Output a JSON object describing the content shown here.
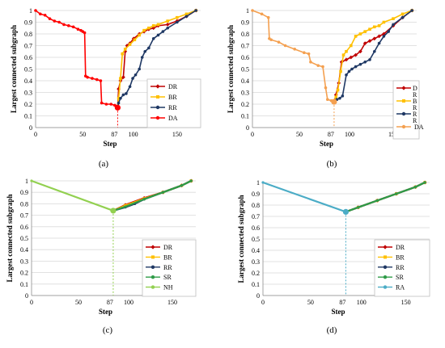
{
  "chart_data": [
    {
      "panel": "(a)",
      "type": "line",
      "xlabel": "Step",
      "ylabel": "Largest connected subgraph",
      "xlim": [
        0,
        175
      ],
      "ylim": [
        0,
        1
      ],
      "xticks": [
        0,
        50,
        87,
        100,
        150
      ],
      "yticks": [
        0,
        0.1,
        0.2,
        0.3,
        0.4,
        0.5,
        0.6,
        0.7,
        0.8,
        0.9,
        1
      ],
      "marker_step": 87,
      "legend_position": "right",
      "series": [
        {
          "name": "DR",
          "color": "#c00000",
          "marker": "diamond",
          "x": [
            87,
            88,
            90,
            93,
            95,
            97,
            100,
            104,
            110,
            115,
            120,
            125,
            130,
            140,
            150,
            160,
            170
          ],
          "y": [
            0.17,
            0.33,
            0.4,
            0.43,
            0.65,
            0.7,
            0.72,
            0.76,
            0.8,
            0.82,
            0.84,
            0.85,
            0.87,
            0.88,
            0.91,
            0.95,
            1.0
          ]
        },
        {
          "name": "BR",
          "color": "#ffc000",
          "marker": "square",
          "x": [
            87,
            88,
            90,
            92,
            95,
            100,
            105,
            110,
            115,
            120,
            125,
            130,
            140,
            150,
            160,
            170
          ],
          "y": [
            0.18,
            0.25,
            0.42,
            0.63,
            0.67,
            0.71,
            0.75,
            0.79,
            0.83,
            0.85,
            0.87,
            0.88,
            0.91,
            0.94,
            0.97,
            1.0
          ]
        },
        {
          "name": "RR",
          "color": "#1f3864",
          "marker": "circle",
          "x": [
            87,
            88,
            90,
            93,
            96,
            100,
            103,
            106,
            110,
            113,
            116,
            120,
            125,
            130,
            135,
            140,
            150,
            160,
            170
          ],
          "y": [
            0.17,
            0.21,
            0.25,
            0.28,
            0.29,
            0.35,
            0.42,
            0.45,
            0.5,
            0.6,
            0.65,
            0.68,
            0.76,
            0.79,
            0.82,
            0.85,
            0.9,
            0.95,
            1.0
          ]
        },
        {
          "name": "DA",
          "color": "#ff0000",
          "marker": "circle",
          "x": [
            0,
            5,
            10,
            15,
            20,
            25,
            30,
            35,
            40,
            45,
            48,
            50,
            52,
            53,
            55,
            60,
            65,
            69,
            70,
            75,
            80,
            84,
            86,
            87
          ],
          "y": [
            1.0,
            0.97,
            0.96,
            0.93,
            0.91,
            0.9,
            0.88,
            0.87,
            0.86,
            0.84,
            0.83,
            0.82,
            0.81,
            0.44,
            0.43,
            0.42,
            0.41,
            0.4,
            0.21,
            0.2,
            0.2,
            0.19,
            0.18,
            0.17
          ]
        }
      ]
    },
    {
      "panel": "(b)",
      "type": "line",
      "xlabel": "Step",
      "ylabel": "Largest connected subgraph",
      "xlim": [
        0,
        175
      ],
      "ylim": [
        0,
        1
      ],
      "xticks": [
        0,
        50,
        87,
        100,
        150
      ],
      "yticks": [
        0,
        0.1,
        0.2,
        0.3,
        0.4,
        0.5,
        0.6,
        0.7,
        0.8,
        0.9,
        1
      ],
      "marker_step": 87,
      "legend_position": "right",
      "series": [
        {
          "name": "DR",
          "legend_label": [
            "D",
            "R"
          ],
          "color": "#c00000",
          "marker": "diamond",
          "x": [
            87,
            89,
            92,
            95,
            100,
            105,
            110,
            115,
            120,
            125,
            130,
            135,
            140,
            150,
            160,
            170
          ],
          "y": [
            0.22,
            0.28,
            0.38,
            0.56,
            0.58,
            0.6,
            0.62,
            0.65,
            0.72,
            0.74,
            0.76,
            0.78,
            0.8,
            0.87,
            0.94,
            1.0
          ]
        },
        {
          "name": "BR",
          "legend_label": [
            "B",
            "R"
          ],
          "color": "#ffc000",
          "marker": "square",
          "x": [
            87,
            89,
            91,
            94,
            97,
            100,
            105,
            110,
            115,
            120,
            125,
            130,
            135,
            140,
            150,
            160,
            170
          ],
          "y": [
            0.22,
            0.26,
            0.32,
            0.48,
            0.62,
            0.65,
            0.7,
            0.78,
            0.8,
            0.82,
            0.84,
            0.86,
            0.87,
            0.9,
            0.93,
            0.97,
            1.0
          ]
        },
        {
          "name": "RR",
          "legend_label": [
            "R",
            "R"
          ],
          "color": "#1f3864",
          "marker": "circle",
          "x": [
            87,
            90,
            93,
            96,
            100,
            103,
            106,
            110,
            115,
            120,
            125,
            130,
            135,
            140,
            145,
            150,
            160,
            170
          ],
          "y": [
            0.22,
            0.24,
            0.25,
            0.27,
            0.45,
            0.48,
            0.5,
            0.52,
            0.54,
            0.56,
            0.58,
            0.65,
            0.72,
            0.78,
            0.82,
            0.88,
            0.94,
            1.0
          ]
        },
        {
          "name": "DA",
          "color": "#f4a050",
          "marker": "circle",
          "x": [
            0,
            10,
            17,
            18,
            20,
            28,
            35,
            45,
            55,
            60,
            62,
            70,
            75,
            78,
            80,
            84,
            87
          ],
          "y": [
            1.0,
            0.97,
            0.94,
            0.76,
            0.75,
            0.73,
            0.7,
            0.67,
            0.64,
            0.63,
            0.56,
            0.53,
            0.52,
            0.34,
            0.24,
            0.23,
            0.22
          ]
        }
      ]
    },
    {
      "panel": "(c)",
      "type": "line",
      "xlabel": "Step",
      "ylabel": "Largest connected subgraph",
      "xlim": [
        0,
        175
      ],
      "ylim": [
        0,
        1
      ],
      "xticks": [
        0,
        50,
        87,
        100,
        150
      ],
      "yticks": [
        0,
        0.1,
        0.2,
        0.3,
        0.4,
        0.5,
        0.6,
        0.7,
        0.8,
        0.9,
        1
      ],
      "marker_step": 87,
      "legend_position": "right",
      "series": [
        {
          "name": "DR",
          "color": "#c00000",
          "marker": "diamond",
          "x": [
            87,
            100,
            120,
            140,
            160,
            170
          ],
          "y": [
            0.74,
            0.79,
            0.85,
            0.9,
            0.96,
            1.0
          ]
        },
        {
          "name": "BR",
          "color": "#ffc000",
          "marker": "square",
          "x": [
            87,
            100,
            120,
            140,
            160,
            170
          ],
          "y": [
            0.74,
            0.785,
            0.845,
            0.9,
            0.96,
            1.0
          ]
        },
        {
          "name": "RR",
          "color": "#1f3864",
          "marker": "circle",
          "x": [
            87,
            100,
            110,
            120,
            140,
            160,
            170
          ],
          "y": [
            0.74,
            0.77,
            0.8,
            0.84,
            0.9,
            0.96,
            1.0
          ]
        },
        {
          "name": "SR",
          "color": "#2e9b47",
          "marker": "circle",
          "x": [
            87,
            100,
            120,
            140,
            160,
            170
          ],
          "y": [
            0.74,
            0.775,
            0.84,
            0.9,
            0.96,
            1.0
          ]
        },
        {
          "name": "NH",
          "color": "#92d050",
          "marker": "circle",
          "x": [
            0,
            87
          ],
          "y": [
            1.0,
            0.74
          ]
        }
      ]
    },
    {
      "panel": "(d)",
      "type": "line",
      "xlabel": "Step",
      "ylabel": "Largest connected subgraph",
      "xlim": [
        0,
        175
      ],
      "ylim": [
        0,
        1
      ],
      "xticks": [
        0,
        50,
        87,
        100,
        150
      ],
      "yticks": [
        0,
        0.1,
        0.2,
        0.3,
        0.4,
        0.5,
        0.6,
        0.7,
        0.8,
        0.9,
        1
      ],
      "marker_step": 87,
      "legend_position": "right",
      "series": [
        {
          "name": "DR",
          "color": "#c00000",
          "marker": "diamond",
          "x": [
            87,
            100,
            120,
            140,
            160,
            170
          ],
          "y": [
            0.74,
            0.78,
            0.84,
            0.9,
            0.96,
            1.0
          ]
        },
        {
          "name": "BR",
          "color": "#ffc000",
          "marker": "square",
          "x": [
            87,
            100,
            120,
            140,
            160,
            170
          ],
          "y": [
            0.74,
            0.78,
            0.84,
            0.9,
            0.96,
            1.0
          ]
        },
        {
          "name": "RR",
          "color": "#1f3864",
          "marker": "circle",
          "x": [
            87,
            100,
            120,
            140,
            160,
            170
          ],
          "y": [
            0.74,
            0.78,
            0.84,
            0.9,
            0.96,
            1.0
          ]
        },
        {
          "name": "SR",
          "color": "#2e9b47",
          "marker": "circle",
          "x": [
            87,
            100,
            120,
            140,
            160,
            170
          ],
          "y": [
            0.74,
            0.78,
            0.84,
            0.9,
            0.96,
            1.0
          ]
        },
        {
          "name": "RA",
          "color": "#4bacc6",
          "marker": "circle",
          "x": [
            0,
            87
          ],
          "y": [
            1.0,
            0.74
          ]
        }
      ]
    }
  ]
}
